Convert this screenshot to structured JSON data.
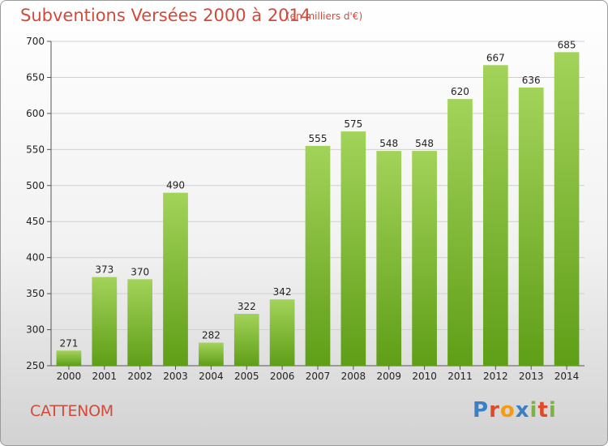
{
  "title": "Subventions Versées 2000 à 2014",
  "subtitle": "(en milliers d'€)",
  "place": "CATTENOM",
  "logo": {
    "p": "P",
    "r": "r",
    "o": "o",
    "x": "x",
    "i": "i",
    "t": "t",
    "i2": "i"
  },
  "colors": {
    "bar_top": "#a3d35a",
    "bar_bottom": "#5f9e17",
    "title": "#d24a3a"
  },
  "chart_data": {
    "type": "bar",
    "title": "Subventions Versées 2000 à 2014",
    "subtitle": "(en milliers d'€)",
    "categories": [
      "2000",
      "2001",
      "2002",
      "2003",
      "2004",
      "2005",
      "2006",
      "2007",
      "2008",
      "2009",
      "2010",
      "2011",
      "2012",
      "2013",
      "2014"
    ],
    "values": [
      271,
      373,
      370,
      490,
      282,
      322,
      342,
      555,
      575,
      548,
      548,
      620,
      667,
      636,
      685
    ],
    "ylim": [
      250,
      700
    ],
    "yticks": [
      250,
      300,
      350,
      400,
      450,
      500,
      550,
      600,
      650,
      700
    ],
    "grid": true
  }
}
